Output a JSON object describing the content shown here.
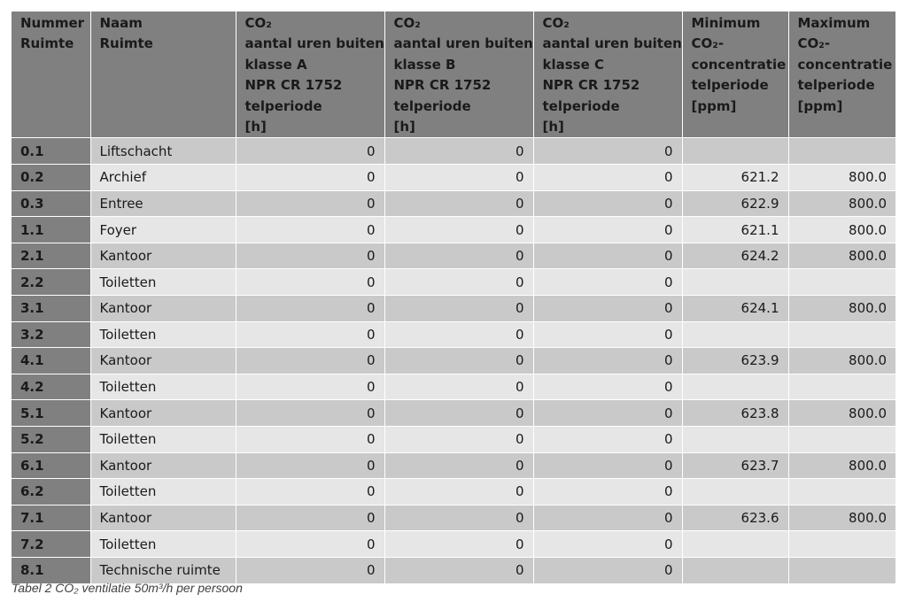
{
  "table": {
    "headers": [
      [
        "Nummer",
        "Ruimte"
      ],
      [
        "Naam",
        "Ruimte"
      ],
      [
        "CO₂",
        "aantal uren buiten",
        "klasse A",
        "NPR CR 1752",
        "telperiode",
        "[h]"
      ],
      [
        "CO₂",
        "aantal uren buiten",
        "klasse B",
        "NPR CR 1752",
        "telperiode",
        "[h]"
      ],
      [
        "CO₂",
        "aantal uren buiten",
        "klasse C",
        "NPR CR 1752",
        "telperiode",
        "[h]"
      ],
      [
        "Minimum",
        "CO₂-",
        "concentratie",
        "telperiode",
        "[ppm]"
      ],
      [
        "Maximum",
        "CO₂-",
        "concentratie",
        "telperiode",
        "[ppm]"
      ]
    ],
    "rows": [
      [
        "0.1",
        "Liftschacht",
        "0",
        "0",
        "0",
        "",
        ""
      ],
      [
        "0.2",
        "Archief",
        "0",
        "0",
        "0",
        "621.2",
        "800.0"
      ],
      [
        "0.3",
        "Entree",
        "0",
        "0",
        "0",
        "622.9",
        "800.0"
      ],
      [
        "1.1",
        "Foyer",
        "0",
        "0",
        "0",
        "621.1",
        "800.0"
      ],
      [
        "2.1",
        "Kantoor",
        "0",
        "0",
        "0",
        "624.2",
        "800.0"
      ],
      [
        "2.2",
        "Toiletten",
        "0",
        "0",
        "0",
        "",
        ""
      ],
      [
        "3.1",
        "Kantoor",
        "0",
        "0",
        "0",
        "624.1",
        "800.0"
      ],
      [
        "3.2",
        "Toiletten",
        "0",
        "0",
        "0",
        "",
        ""
      ],
      [
        "4.1",
        "Kantoor",
        "0",
        "0",
        "0",
        "623.9",
        "800.0"
      ],
      [
        "4.2",
        "Toiletten",
        "0",
        "0",
        "0",
        "",
        ""
      ],
      [
        "5.1",
        "Kantoor",
        "0",
        "0",
        "0",
        "623.8",
        "800.0"
      ],
      [
        "5.2",
        "Toiletten",
        "0",
        "0",
        "0",
        "",
        ""
      ],
      [
        "6.1",
        "Kantoor",
        "0",
        "0",
        "0",
        "623.7",
        "800.0"
      ],
      [
        "6.2",
        "Toiletten",
        "0",
        "0",
        "0",
        "",
        ""
      ],
      [
        "7.1",
        "Kantoor",
        "0",
        "0",
        "0",
        "623.6",
        "800.0"
      ],
      [
        "7.2",
        "Toiletten",
        "0",
        "0",
        "0",
        "",
        ""
      ],
      [
        "8.1",
        "Technische ruimte",
        "0",
        "0",
        "0",
        "",
        ""
      ]
    ]
  },
  "caption": "Tabel 2 CO₂ ventilatie 50m³/h per persoon",
  "colors": {
    "header_bg": "#808080",
    "row_dark": "#c9c9c9",
    "row_light": "#e6e6e6"
  }
}
